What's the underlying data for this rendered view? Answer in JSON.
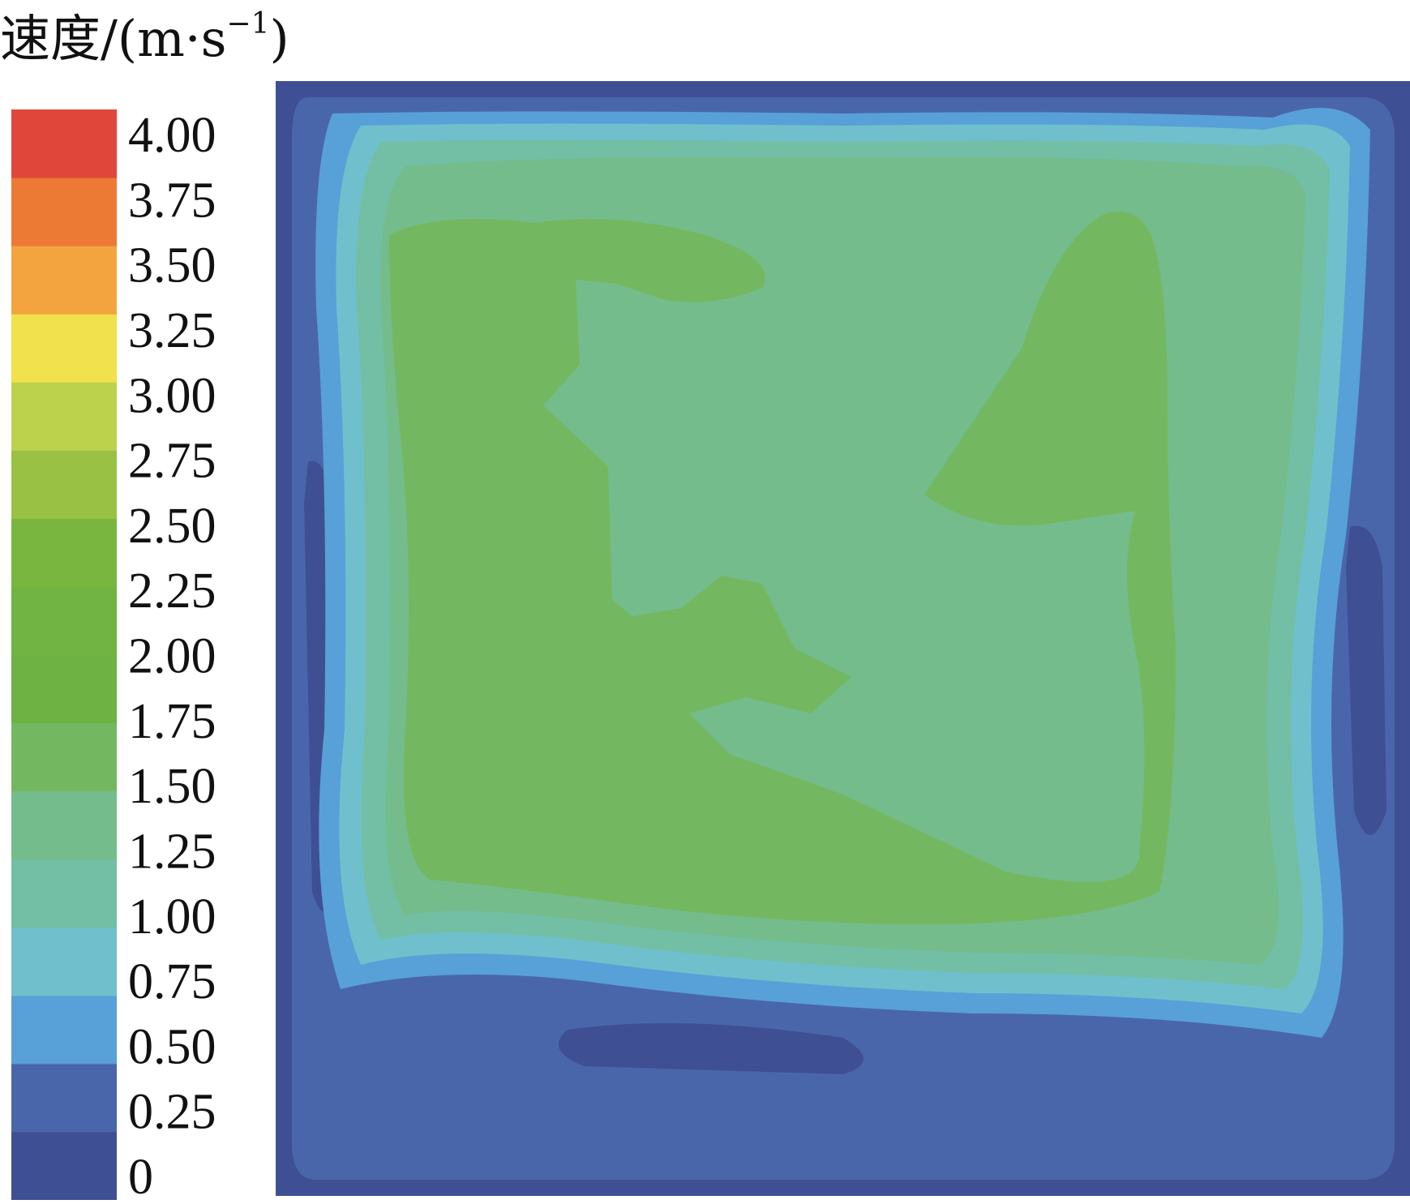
{
  "chart_data": {
    "type": "heatmap",
    "title": "速度/(m·s",
    "title_exponent": "−1",
    "title_close": ")",
    "colorbar": {
      "ticks": [
        "4.00",
        "3.75",
        "3.50",
        "3.25",
        "3.00",
        "2.75",
        "2.50",
        "2.25",
        "2.00",
        "1.75",
        "1.50",
        "1.25",
        "1.00",
        "0.75",
        "0.50",
        "0.25",
        "0"
      ],
      "levels": [
        {
          "min": 0.0,
          "max": 0.25,
          "color": "#3f4f94"
        },
        {
          "min": 0.25,
          "max": 0.5,
          "color": "#4a66aa"
        },
        {
          "min": 0.5,
          "max": 0.75,
          "color": "#58a0d8"
        },
        {
          "min": 0.75,
          "max": 1.0,
          "color": "#6fc0cc"
        },
        {
          "min": 1.0,
          "max": 1.25,
          "color": "#72bfa5"
        },
        {
          "min": 1.25,
          "max": 1.5,
          "color": "#74bc8c"
        },
        {
          "min": 1.5,
          "max": 1.75,
          "color": "#73b860"
        },
        {
          "min": 1.75,
          "max": 2.0,
          "color": "#6db243"
        },
        {
          "min": 2.0,
          "max": 2.25,
          "color": "#72b443"
        },
        {
          "min": 2.25,
          "max": 2.5,
          "color": "#78b63f"
        },
        {
          "min": 2.5,
          "max": 2.75,
          "color": "#99c244"
        },
        {
          "min": 2.75,
          "max": 3.0,
          "color": "#bdd24c"
        },
        {
          "min": 3.0,
          "max": 3.25,
          "color": "#f1e14c"
        },
        {
          "min": 3.25,
          "max": 3.5,
          "color": "#f3a43e"
        },
        {
          "min": 3.5,
          "max": 3.75,
          "color": "#ec7a35"
        },
        {
          "min": 3.75,
          "max": 4.0,
          "color": "#e0473a"
        }
      ],
      "range": [
        0,
        4.0
      ]
    },
    "field": {
      "description_levels": [
        "outer wall region ~0–0.25",
        "ring ~0.25–0.75",
        "band ~0.75–1.25",
        "core ~1.5–2.0"
      ]
    }
  }
}
